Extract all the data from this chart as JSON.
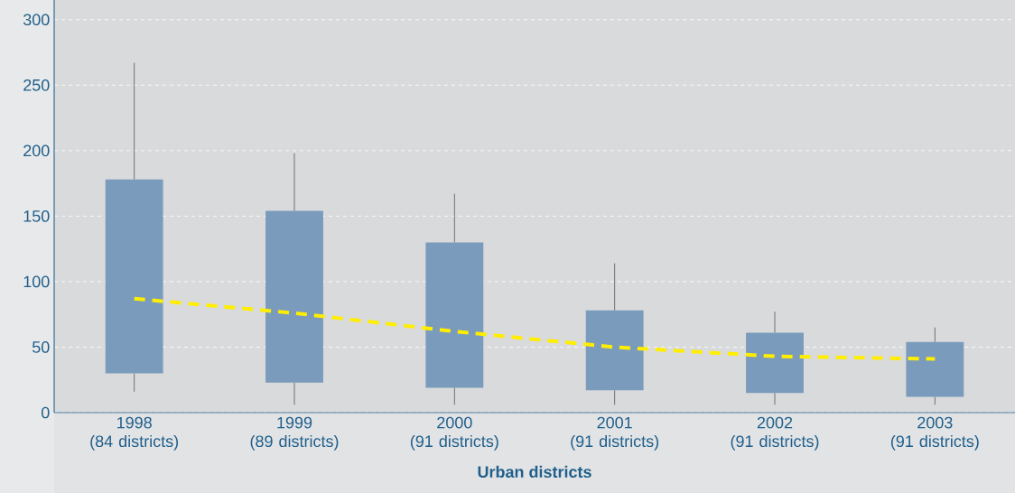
{
  "chart_data": {
    "type": "box",
    "xlabel": "Urban districts",
    "categories": [
      "1998\n(84 districts)",
      "1999\n(89 districts)",
      "2000\n(91 districts)",
      "2001\n(91 districts)",
      "2002\n(91 districts)",
      "2003\n(91 districts)"
    ],
    "ylim": [
      0,
      315
    ],
    "yticks": [
      0,
      50,
      100,
      150,
      200,
      250,
      300
    ],
    "grid": "y",
    "series": [
      {
        "color": "#7a9bbc",
        "boxes": [
          {
            "low": 16,
            "q1": 30,
            "median": 87,
            "q3": 178,
            "high": 267
          },
          {
            "low": 6,
            "q1": 23,
            "median": 76,
            "q3": 154,
            "high": 198
          },
          {
            "low": 6,
            "q1": 19,
            "median": 62,
            "q3": 130,
            "high": 167
          },
          {
            "low": 6,
            "q1": 17,
            "median": 50,
            "q3": 78,
            "high": 114
          },
          {
            "low": 6,
            "q1": 15,
            "median": 43,
            "q3": 61,
            "high": 77
          },
          {
            "low": 6,
            "q1": 12,
            "median": 41,
            "q3": 54,
            "high": 65
          }
        ]
      },
      {
        "type": "line",
        "color": "#ffee00",
        "line_style": "dashed",
        "marker": "none",
        "values": [
          87,
          76,
          62,
          50,
          43,
          41
        ]
      }
    ]
  }
}
